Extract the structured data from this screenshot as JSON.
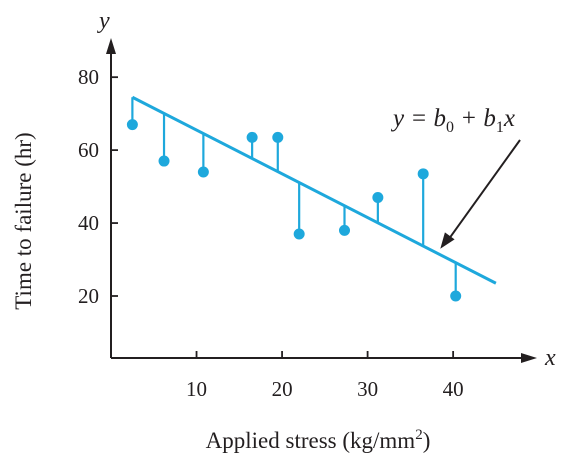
{
  "chart_data": {
    "type": "scatter",
    "title": "",
    "xlabel": "Applied stress (kg/mm",
    "xlabel_superscript": "2",
    "xlabel_close": ")",
    "ylabel": "Time to failure (hr)",
    "x_axis_letter": "x",
    "y_axis_letter": "y",
    "xlim": [
      0,
      47
    ],
    "ylim": [
      3,
      88
    ],
    "xticks": [
      10,
      20,
      30,
      40
    ],
    "yticks": [
      20,
      40,
      60,
      80
    ],
    "grid": false,
    "legend": "none",
    "colors": {
      "data": "#1ea8dc",
      "axis": "#231f20",
      "text": "#231f20"
    },
    "points": [
      {
        "x": 2.5,
        "y": 67
      },
      {
        "x": 6.2,
        "y": 57
      },
      {
        "x": 10.8,
        "y": 54
      },
      {
        "x": 16.5,
        "y": 63.5
      },
      {
        "x": 19.5,
        "y": 63.5
      },
      {
        "x": 22.0,
        "y": 37
      },
      {
        "x": 27.3,
        "y": 38
      },
      {
        "x": 31.2,
        "y": 47
      },
      {
        "x": 36.5,
        "y": 53.5
      },
      {
        "x": 40.3,
        "y": 20
      }
    ],
    "fit_line": {
      "x_start": 2.5,
      "x_end": 45,
      "intercept": 77.5,
      "slope": -1.2
    },
    "annotation": {
      "pre": "y = b",
      "sub0": "0",
      "mid": " + b",
      "sub1": "1",
      "post": "x",
      "points_to_x": 38.5
    }
  }
}
